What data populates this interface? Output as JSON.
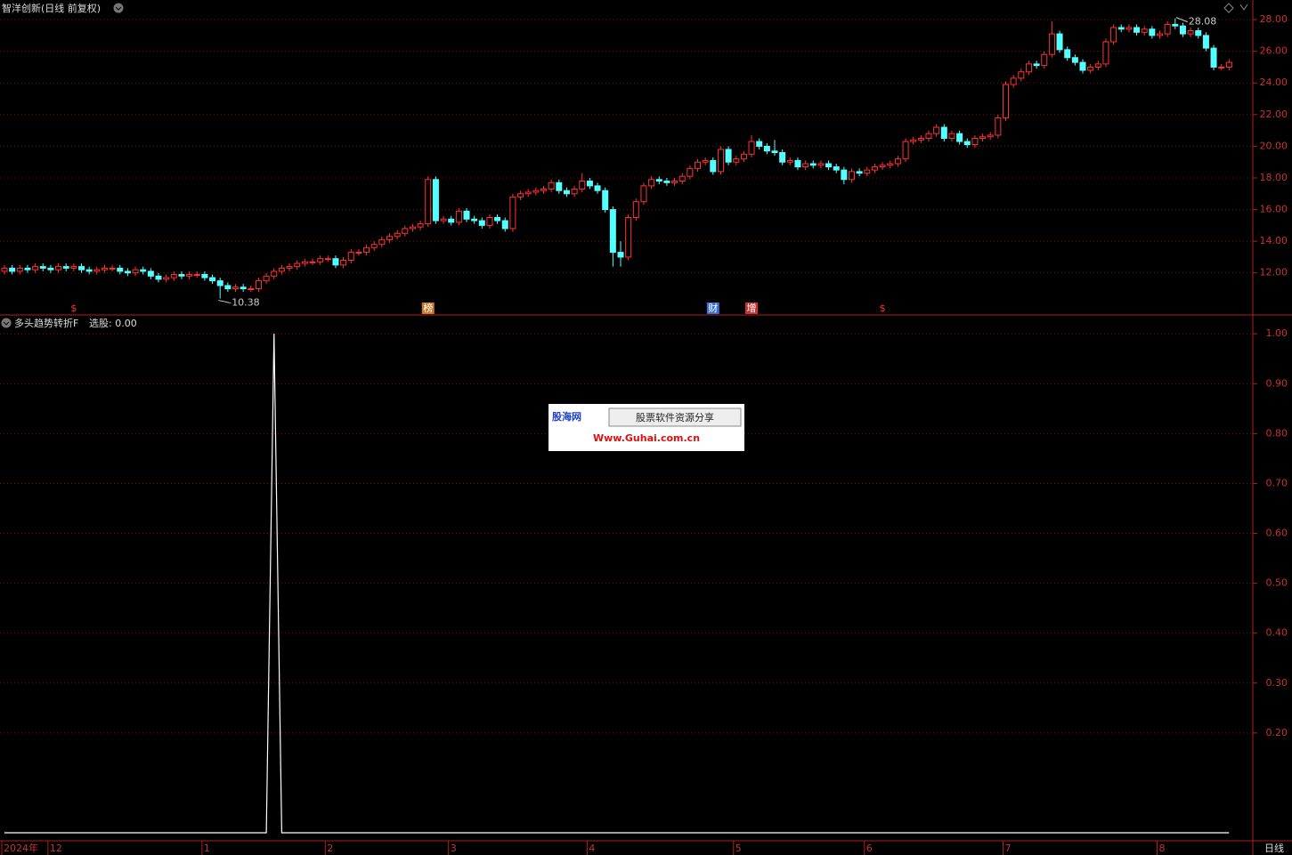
{
  "chart_data": [
    {
      "type": "candlestick",
      "title": "智洋创新(日线 前复权)",
      "categories": [
        "2024年",
        null,
        null,
        null,
        null,
        null,
        "12",
        null,
        null,
        null,
        null,
        null,
        null,
        null,
        null,
        null,
        null,
        null,
        null,
        null,
        null,
        null,
        null,
        null,
        null,
        null,
        "1",
        null,
        null,
        null,
        null,
        null,
        null,
        null,
        null,
        null,
        null,
        null,
        null,
        null,
        null,
        null,
        "2",
        null,
        null,
        null,
        null,
        null,
        null,
        null,
        null,
        null,
        null,
        null,
        null,
        null,
        null,
        null,
        "3",
        null,
        null,
        null,
        null,
        null,
        null,
        null,
        null,
        null,
        null,
        null,
        null,
        null,
        null,
        null,
        null,
        null,
        "4",
        null,
        null,
        null,
        null,
        null,
        null,
        null,
        null,
        null,
        null,
        null,
        null,
        null,
        null,
        null,
        null,
        null,
        null,
        "5",
        null,
        null,
        null,
        null,
        null,
        null,
        null,
        null,
        null,
        null,
        null,
        null,
        null,
        null,
        null,
        null,
        "6",
        null,
        null,
        null,
        null,
        null,
        null,
        null,
        null,
        null,
        null,
        null,
        null,
        null,
        null,
        null,
        null,
        null,
        "7",
        null,
        null,
        null,
        null,
        null,
        null,
        null,
        null,
        null,
        null,
        null,
        null,
        null,
        null,
        null,
        null,
        null,
        null,
        null,
        "8",
        null,
        null,
        null,
        null,
        null,
        null,
        null,
        null,
        null
      ],
      "open": [
        12.1,
        12.3,
        12.1,
        12.3,
        12.2,
        12.4,
        12.3,
        12.2,
        12.4,
        12.3,
        12.4,
        12.2,
        12.1,
        12.2,
        12.3,
        12.3,
        12.1,
        12.0,
        12.2,
        12.1,
        11.8,
        11.6,
        11.7,
        11.9,
        11.8,
        11.9,
        11.9,
        11.7,
        11.5,
        11.2,
        11.0,
        11.1,
        11.0,
        11.0,
        11.5,
        11.8,
        12.1,
        12.3,
        12.4,
        12.6,
        12.7,
        12.7,
        12.9,
        12.9,
        12.5,
        12.8,
        13.3,
        13.3,
        13.6,
        13.8,
        14.1,
        14.3,
        14.5,
        14.8,
        14.9,
        15.1,
        17.9,
        15.3,
        15.4,
        15.2,
        15.9,
        15.4,
        15.3,
        15.0,
        15.5,
        15.3,
        14.8,
        16.8,
        17.0,
        17.1,
        17.2,
        17.3,
        17.7,
        17.2,
        17.0,
        17.3,
        17.8,
        17.5,
        17.2,
        16.0,
        13.3,
        13.0,
        15.5,
        16.5,
        17.5,
        17.9,
        17.8,
        17.7,
        17.8,
        18.1,
        18.6,
        19.0,
        19.1,
        18.4,
        19.8,
        19.0,
        19.2,
        19.5,
        20.3,
        20.0,
        19.7,
        19.6,
        19.0,
        19.1,
        18.7,
        18.9,
        18.8,
        18.9,
        18.7,
        18.5,
        17.9,
        18.4,
        18.3,
        18.5,
        18.7,
        18.8,
        18.9,
        19.2,
        20.3,
        20.4,
        20.5,
        20.8,
        21.2,
        20.5,
        20.8,
        20.3,
        20.1,
        20.5,
        20.6,
        20.7,
        21.8,
        23.9,
        24.3,
        24.7,
        25.2,
        25.1,
        25.8,
        27.1,
        26.1,
        25.6,
        25.3,
        24.8,
        25.0,
        25.2,
        26.6,
        27.5,
        27.4,
        27.5,
        27.2,
        27.4,
        27.0,
        27.1,
        27.7,
        27.6,
        27.1,
        27.3,
        27.0,
        26.2,
        25.0,
        25.0
      ],
      "high": [
        12.5,
        12.5,
        12.5,
        12.5,
        12.6,
        12.6,
        12.5,
        12.6,
        12.6,
        12.6,
        12.6,
        12.4,
        12.4,
        12.5,
        12.5,
        12.5,
        12.3,
        12.4,
        12.4,
        12.3,
        12.0,
        11.9,
        12.1,
        12.1,
        12.1,
        12.1,
        12.1,
        11.9,
        11.7,
        11.4,
        11.3,
        11.3,
        11.2,
        11.7,
        12.0,
        12.3,
        12.5,
        12.6,
        12.8,
        12.9,
        12.9,
        13.1,
        13.1,
        13.1,
        13.0,
        13.5,
        13.5,
        13.8,
        14.0,
        14.3,
        14.5,
        14.7,
        15.0,
        15.1,
        15.3,
        18.1,
        18.1,
        15.6,
        15.6,
        16.1,
        16.1,
        15.6,
        15.5,
        15.7,
        15.7,
        15.5,
        17.0,
        17.2,
        17.3,
        17.4,
        17.5,
        17.9,
        17.9,
        17.4,
        17.5,
        18.3,
        18.0,
        17.7,
        17.4,
        16.2,
        14.0,
        15.7,
        16.7,
        17.7,
        18.1,
        18.1,
        18.0,
        18.0,
        18.3,
        18.8,
        19.2,
        19.3,
        19.3,
        20.0,
        20.0,
        19.4,
        19.7,
        20.7,
        20.5,
        20.2,
        20.4,
        19.8,
        19.3,
        19.3,
        19.1,
        19.1,
        19.1,
        19.1,
        18.9,
        18.7,
        18.6,
        18.6,
        18.7,
        18.9,
        19.0,
        19.1,
        19.4,
        20.5,
        20.6,
        20.7,
        21.0,
        21.4,
        21.4,
        21.0,
        21.0,
        20.5,
        20.7,
        20.8,
        20.9,
        22.0,
        24.1,
        24.5,
        24.9,
        25.4,
        25.4,
        26.0,
        27.9,
        27.3,
        26.3,
        25.8,
        25.5,
        25.2,
        25.4,
        26.8,
        27.7,
        27.7,
        27.7,
        27.7,
        27.6,
        27.6,
        27.3,
        27.9,
        28.08,
        27.8,
        27.5,
        27.5,
        27.2,
        26.4,
        25.2,
        25.5
      ],
      "low": [
        11.9,
        11.9,
        11.9,
        12.0,
        12.0,
        12.1,
        12.0,
        12.0,
        12.1,
        12.1,
        12.0,
        11.9,
        11.9,
        12.0,
        12.1,
        11.9,
        11.8,
        11.8,
        11.9,
        11.6,
        11.4,
        11.4,
        11.5,
        11.6,
        11.6,
        11.7,
        11.5,
        11.3,
        10.38,
        10.8,
        10.8,
        10.8,
        10.8,
        10.8,
        11.3,
        11.6,
        11.9,
        12.1,
        12.2,
        12.4,
        12.5,
        12.5,
        12.7,
        12.3,
        12.3,
        12.6,
        13.1,
        13.1,
        13.4,
        13.6,
        13.9,
        14.1,
        14.3,
        14.6,
        14.7,
        14.9,
        15.1,
        15.1,
        15.0,
        15.0,
        15.2,
        15.1,
        14.8,
        14.8,
        15.1,
        14.6,
        14.6,
        16.6,
        16.8,
        16.9,
        17.0,
        17.1,
        17.0,
        16.8,
        16.8,
        17.1,
        17.3,
        17.0,
        15.8,
        12.4,
        12.4,
        12.8,
        15.3,
        16.3,
        17.3,
        17.6,
        17.5,
        17.5,
        17.6,
        17.9,
        18.4,
        18.8,
        18.2,
        18.2,
        18.8,
        18.8,
        19.0,
        19.3,
        19.8,
        19.5,
        19.4,
        18.8,
        18.8,
        18.5,
        18.5,
        18.6,
        18.6,
        18.5,
        18.3,
        17.6,
        17.7,
        18.1,
        18.1,
        18.3,
        18.5,
        18.6,
        18.7,
        19.0,
        20.1,
        20.2,
        20.3,
        20.6,
        20.3,
        20.3,
        20.1,
        19.9,
        19.9,
        20.3,
        20.4,
        20.5,
        21.6,
        23.7,
        24.1,
        24.5,
        24.9,
        24.9,
        25.6,
        25.9,
        25.4,
        25.1,
        24.6,
        24.6,
        24.8,
        25.0,
        26.4,
        27.2,
        27.2,
        27.0,
        27.0,
        26.8,
        26.8,
        26.9,
        27.4,
        26.9,
        26.9,
        26.8,
        26.0,
        24.8,
        24.8,
        24.8
      ],
      "close": [
        12.3,
        12.1,
        12.3,
        12.2,
        12.4,
        12.3,
        12.2,
        12.4,
        12.3,
        12.4,
        12.2,
        12.1,
        12.2,
        12.3,
        12.3,
        12.1,
        12.0,
        12.2,
        12.1,
        11.8,
        11.6,
        11.7,
        11.9,
        11.8,
        11.9,
        11.9,
        11.7,
        11.5,
        11.2,
        11.0,
        11.1,
        11.0,
        11.0,
        11.5,
        11.8,
        12.1,
        12.3,
        12.4,
        12.6,
        12.7,
        12.7,
        12.9,
        12.9,
        12.5,
        12.8,
        13.3,
        13.3,
        13.6,
        13.8,
        14.1,
        14.3,
        14.5,
        14.8,
        14.9,
        15.1,
        17.9,
        15.3,
        15.4,
        15.2,
        15.9,
        15.4,
        15.3,
        15.0,
        15.5,
        15.3,
        14.8,
        16.8,
        17.0,
        17.1,
        17.2,
        17.3,
        17.7,
        17.2,
        17.0,
        17.3,
        17.8,
        17.5,
        17.2,
        16.0,
        13.3,
        13.0,
        15.5,
        16.5,
        17.5,
        17.9,
        17.8,
        17.7,
        17.8,
        18.1,
        18.6,
        19.0,
        19.1,
        18.4,
        19.8,
        19.0,
        19.2,
        19.5,
        20.3,
        20.0,
        19.7,
        19.6,
        19.0,
        19.1,
        18.7,
        18.9,
        18.8,
        18.9,
        18.7,
        18.5,
        17.9,
        18.4,
        18.3,
        18.5,
        18.7,
        18.8,
        18.9,
        19.2,
        20.3,
        20.4,
        20.5,
        20.8,
        21.2,
        20.5,
        20.8,
        20.3,
        20.1,
        20.5,
        20.6,
        20.7,
        21.8,
        23.9,
        24.3,
        24.7,
        25.2,
        25.1,
        25.8,
        27.1,
        26.1,
        25.6,
        25.3,
        24.8,
        25.0,
        25.2,
        26.6,
        27.5,
        27.4,
        27.5,
        27.2,
        27.4,
        27.0,
        27.1,
        27.7,
        27.6,
        27.1,
        27.3,
        27.0,
        26.2,
        25.0,
        25.0,
        25.3
      ],
      "up_color": "#ff3232",
      "down_color": "#54ffff",
      "ylim": [
        9.4,
        29.24
      ],
      "yticks": [
        {
          "value": 12,
          "label": "12.00"
        },
        {
          "value": 14,
          "label": "14.00"
        },
        {
          "value": 16,
          "label": "16.00"
        },
        {
          "value": 18,
          "label": "18.00"
        },
        {
          "value": 20,
          "label": "20.00"
        },
        {
          "value": 22,
          "label": "22.00"
        },
        {
          "value": 24,
          "label": "24.00"
        },
        {
          "value": 26,
          "label": "26.00"
        },
        {
          "value": 28,
          "label": "28.00"
        }
      ],
      "grid": true,
      "events": [
        {
          "candle": 9,
          "label": "$",
          "color": "#ff3232"
        },
        {
          "candle": 55,
          "label": "榜",
          "color": "#c87a2a"
        },
        {
          "candle": 92,
          "label": "财",
          "color": "#3a6fd0"
        },
        {
          "candle": 97,
          "label": "增",
          "color": "#c83232"
        },
        {
          "candle": 114,
          "label": "$",
          "color": "#ff3232"
        }
      ]
    },
    {
      "type": "line",
      "title": "多头趋势转折F",
      "readout": "选股: 0.00",
      "color": "#ffffff",
      "values": [
        0,
        0,
        0,
        0,
        0,
        0,
        0,
        0,
        0,
        0,
        0,
        0,
        0,
        0,
        0,
        0,
        0,
        0,
        0,
        0,
        0,
        0,
        0,
        0,
        0,
        0,
        0,
        0,
        0,
        0,
        0,
        0,
        0,
        0,
        0,
        1,
        0,
        0,
        0,
        0,
        0,
        0,
        0,
        0,
        0,
        0,
        0,
        0,
        0,
        0,
        0,
        0,
        0,
        0,
        0,
        0,
        0,
        0,
        0,
        0,
        0,
        0,
        0,
        0,
        0,
        0,
        0,
        0,
        0,
        0,
        0,
        0,
        0,
        0,
        0,
        0,
        0,
        0,
        0,
        0,
        0,
        0,
        0,
        0,
        0,
        0,
        0,
        0,
        0,
        0,
        0,
        0,
        0,
        0,
        0,
        0,
        0,
        0,
        0,
        0,
        0,
        0,
        0,
        0,
        0,
        0,
        0,
        0,
        0,
        0,
        0,
        0,
        0,
        0,
        0,
        0,
        0,
        0,
        0,
        0,
        0,
        0,
        0,
        0,
        0,
        0,
        0,
        0,
        0,
        0,
        0,
        0,
        0,
        0,
        0,
        0,
        0,
        0,
        0,
        0,
        0,
        0,
        0,
        0,
        0,
        0,
        0,
        0,
        0,
        0,
        0,
        0,
        0,
        0,
        0,
        0,
        0,
        0,
        0,
        0
      ],
      "ylim": [
        -0.016,
        1.036
      ],
      "yticks": [
        {
          "value": 0.2,
          "label": "0.20"
        },
        {
          "value": 0.3,
          "label": "0.30"
        },
        {
          "value": 0.4,
          "label": "0.40"
        },
        {
          "value": 0.5,
          "label": "0.50"
        },
        {
          "value": 0.6,
          "label": "0.60"
        },
        {
          "value": 0.7,
          "label": "0.70"
        },
        {
          "value": 0.8,
          "label": "0.80"
        },
        {
          "value": 0.9,
          "label": "0.90"
        },
        {
          "value": 1,
          "label": "1.00"
        }
      ],
      "grid": true
    }
  ],
  "period_label": "日线",
  "watermark": {
    "site": "股海网",
    "slogan": "股票软件资源分享",
    "url": "Www.Guhai.com.cn"
  }
}
